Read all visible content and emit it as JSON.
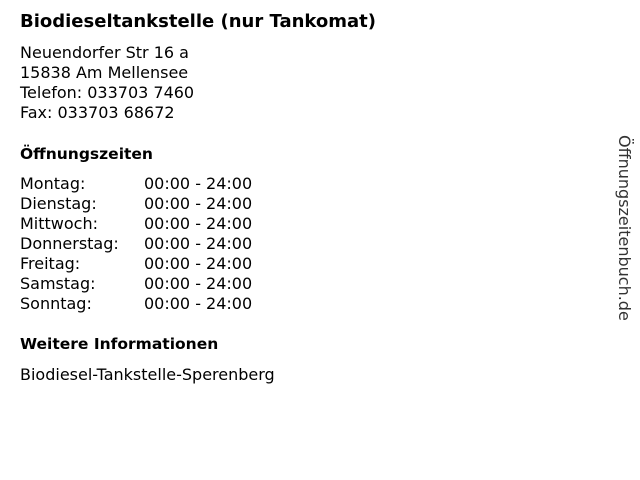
{
  "title": "Biodieseltankstelle (nur Tankomat)",
  "address": [
    "Neuendorfer Str 16 a",
    "15838 Am Mellensee",
    "Telefon: 033703 7460",
    "Fax: 033703 68672"
  ],
  "hours_heading": "Öffnungszeiten",
  "hours": [
    {
      "day": "Montag:",
      "time": "00:00 - 24:00"
    },
    {
      "day": "Dienstag:",
      "time": "00:00 - 24:00"
    },
    {
      "day": "Mittwoch:",
      "time": "00:00 - 24:00"
    },
    {
      "day": "Donnerstag:",
      "time": "00:00 - 24:00"
    },
    {
      "day": "Freitag:",
      "time": "00:00 - 24:00"
    },
    {
      "day": "Samstag:",
      "time": "00:00 - 24:00"
    },
    {
      "day": "Sonntag:",
      "time": "00:00 - 24:00"
    }
  ],
  "info_heading": "Weitere Informationen",
  "info_text": "Biodiesel-Tankstelle-Sperenberg",
  "watermark": "Öffnungszeitenbuch.de"
}
